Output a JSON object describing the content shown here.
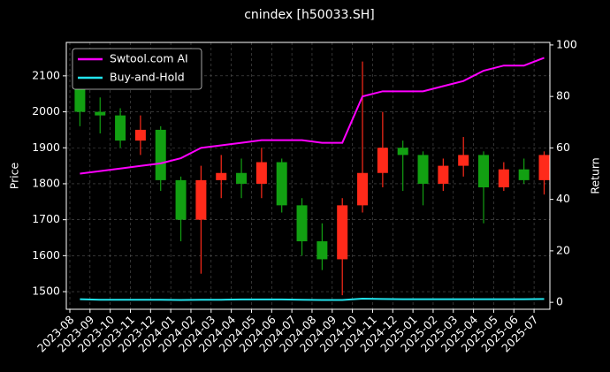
{
  "chart_data": {
    "type": "candlestick",
    "title": "cnindex [h50033.SH]",
    "ylabel": "Price",
    "y2label": "Return",
    "x": [
      "2023-08",
      "2023-09",
      "2023-10",
      "2023-11",
      "2023-12",
      "2024-01",
      "2024-02",
      "2024-03",
      "2024-04",
      "2024-05",
      "2024-06",
      "2024-07",
      "2024-08",
      "2024-09",
      "2024-10",
      "2024-11",
      "2024-12",
      "2025-01",
      "2025-02",
      "2025-03",
      "2025-04",
      "2025-05",
      "2025-06",
      "2025-07"
    ],
    "candles": {
      "open": [
        2100,
        2000,
        1990,
        1920,
        1950,
        1810,
        1700,
        1810,
        1830,
        1800,
        1860,
        1740,
        1640,
        1590,
        1740,
        1830,
        1900,
        1880,
        1800,
        1850,
        1880,
        1790,
        1840,
        1810
      ],
      "high": [
        2130,
        2040,
        2010,
        1990,
        1960,
        1820,
        1850,
        1880,
        1870,
        1900,
        1870,
        1760,
        1690,
        1760,
        2140,
        2000,
        1920,
        1890,
        1870,
        1930,
        1890,
        1860,
        1870,
        1890
      ],
      "low": [
        1960,
        1940,
        1900,
        1880,
        1780,
        1640,
        1550,
        1760,
        1760,
        1760,
        1720,
        1600,
        1560,
        1490,
        1720,
        1790,
        1780,
        1740,
        1780,
        1820,
        1690,
        1780,
        1800,
        1770
      ],
      "close": [
        2000,
        1990,
        1920,
        1950,
        1810,
        1700,
        1810,
        1830,
        1800,
        1860,
        1740,
        1640,
        1590,
        1740,
        1830,
        1900,
        1880,
        1800,
        1850,
        1880,
        1790,
        1840,
        1810,
        1880
      ],
      "up_color": "#ff2a1a",
      "down_color": "#12a012"
    },
    "series": [
      {
        "name": "Swtool.com AI",
        "color": "#ff00ff",
        "axis": "y2",
        "values": [
          50,
          51,
          52,
          53,
          54,
          56,
          60,
          61,
          62,
          63,
          63,
          63,
          62,
          62,
          80,
          82,
          82,
          82,
          84,
          86,
          90,
          92,
          92,
          95
        ]
      },
      {
        "name": "Buy-and-Hold",
        "color": "#22e5ee",
        "axis": "y2",
        "values": [
          1.2,
          1.0,
          1.0,
          1.0,
          1.0,
          0.9,
          1.0,
          1.0,
          1.1,
          1.1,
          1.1,
          1.0,
          0.9,
          0.9,
          1.4,
          1.3,
          1.2,
          1.2,
          1.2,
          1.2,
          1.2,
          1.2,
          1.2,
          1.3
        ]
      }
    ],
    "ylim": [
      1451,
      2193
    ],
    "yticks": [
      1500,
      1600,
      1700,
      1800,
      1900,
      2000,
      2100
    ],
    "y2lim": [
      -2.7,
      101
    ],
    "y2ticks": [
      0,
      20,
      40,
      60,
      80,
      100
    ],
    "grid": true,
    "legend": "upper left"
  }
}
